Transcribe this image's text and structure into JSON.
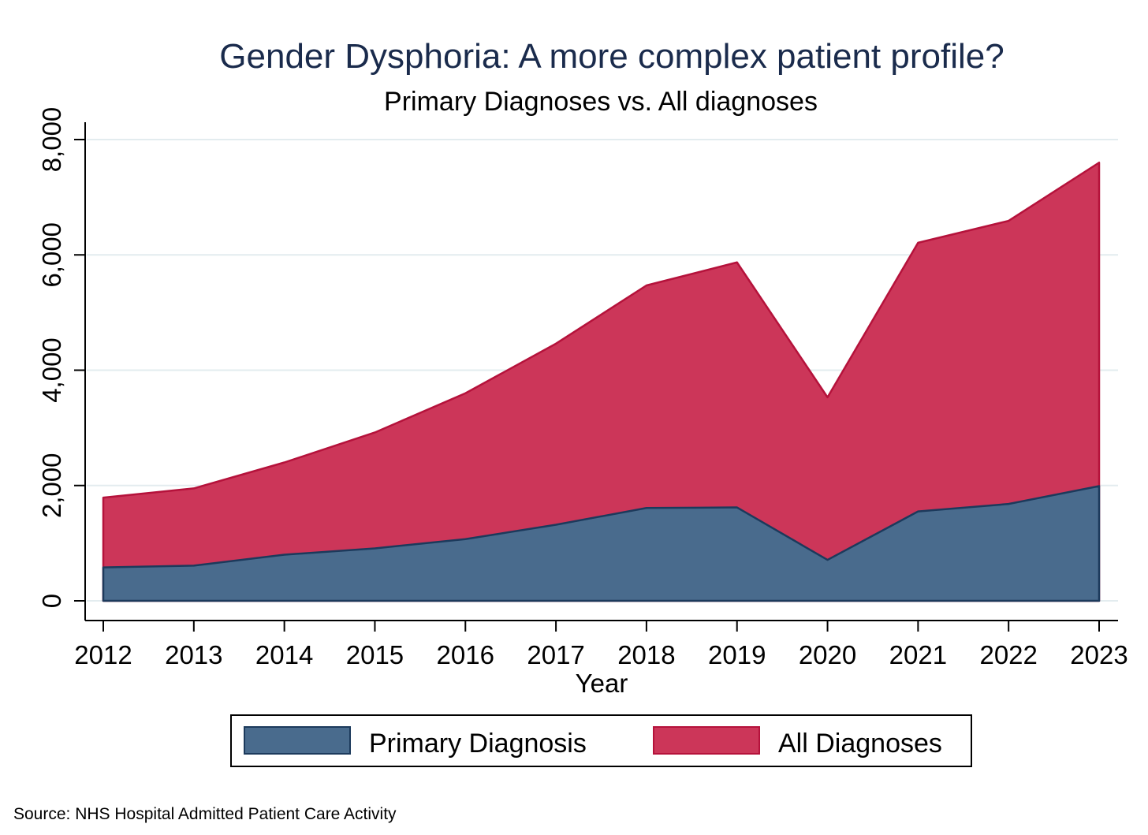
{
  "chart_data": {
    "type": "area",
    "title": "Gender Dysphoria: A more complex patient profile?",
    "subtitle": "Primary Diagnoses vs. All diagnoses",
    "xlabel": "Year",
    "ylabel": "",
    "x": [
      "2012",
      "2013",
      "2014",
      "2015",
      "2016",
      "2017",
      "2018",
      "2019",
      "2020",
      "2021",
      "2022",
      "2023"
    ],
    "ylim": [
      0,
      8000
    ],
    "yticks": [
      0,
      2000,
      4000,
      6000,
      8000
    ],
    "ytick_labels": [
      "0",
      "2,000",
      "4,000",
      "6,000",
      "8,000"
    ],
    "grid": true,
    "legend_position": "bottom",
    "series": [
      {
        "name": "All Diagnoses",
        "color": "#cc3659",
        "edge_color": "#b5123b",
        "values": [
          1790,
          1950,
          2400,
          2920,
          3600,
          4460,
          5470,
          5870,
          3530,
          6210,
          6590,
          7600
        ]
      },
      {
        "name": "Primary Diagnosis",
        "color": "#496b8d",
        "edge_color": "#1c3a5c",
        "values": [
          580,
          610,
          800,
          910,
          1070,
          1320,
          1610,
          1620,
          710,
          1550,
          1680,
          1990
        ]
      }
    ],
    "legend_order": [
      "Primary Diagnosis",
      "All Diagnoses"
    ],
    "source": "Source: NHS Hospital Admitted Patient Care Activity"
  }
}
